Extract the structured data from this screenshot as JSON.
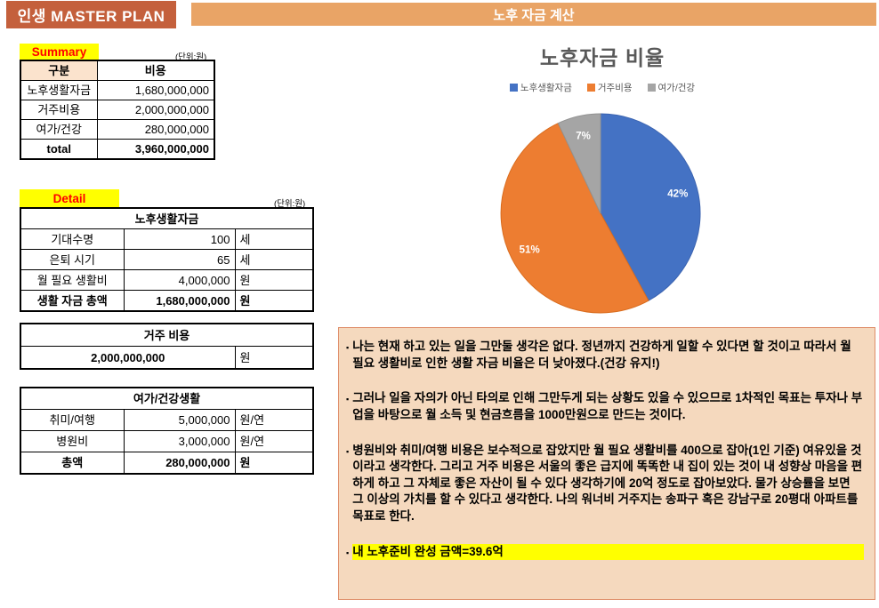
{
  "header": {
    "brand": "인생 MASTER PLAN",
    "title": "노후 자금 계산",
    "brand_bg": "#C4603C",
    "bar_bg": "#E9A466"
  },
  "summary": {
    "label": "Summary",
    "unit_note": "(단위:원)",
    "columns": [
      "구분",
      "비용"
    ],
    "rows": [
      {
        "label": "노후생활자금",
        "value": "1,680,000,000"
      },
      {
        "label": "거주비용",
        "value": "2,000,000,000"
      },
      {
        "label": "여가/건강",
        "value": "280,000,000"
      }
    ],
    "total": {
      "label": "total",
      "value": "3,960,000,000"
    },
    "header_fill": "#FBE3CD"
  },
  "detail": {
    "label": "Detail",
    "unit_note": "(단위:원)",
    "title": "노후생활자금",
    "rows": [
      {
        "label": "기대수명",
        "value": "100",
        "unit": "세"
      },
      {
        "label": "은퇴 시기",
        "value": "65",
        "unit": "세"
      },
      {
        "label": "월 필요 생활비",
        "value": "4,000,000",
        "unit": "원"
      }
    ],
    "total": {
      "label": "생활 자금 총액",
      "value": "1,680,000,000",
      "unit": "원"
    }
  },
  "housing": {
    "title": "거주 비용",
    "value": "2,000,000,000",
    "unit": "원"
  },
  "leisure": {
    "title": "여가/건강생활",
    "rows": [
      {
        "label": "취미/여행",
        "value": "5,000,000",
        "unit": "원/연"
      },
      {
        "label": "병원비",
        "value": "3,000,000",
        "unit": "원/연"
      }
    ],
    "total": {
      "label": "총액",
      "value": "280,000,000",
      "unit": "원"
    }
  },
  "chart_data": {
    "type": "pie",
    "title": "노후자금 비율",
    "categories": [
      "노후생활자금",
      "거주비용",
      "여가/건강"
    ],
    "values": [
      42,
      51,
      7
    ],
    "labels": [
      "42%",
      "51%",
      "7%"
    ],
    "colors": [
      "#4472C4",
      "#ED7D31",
      "#A5A5A5"
    ],
    "border_colors": [
      "#3B63B0",
      "#D96C1E",
      "#929292"
    ],
    "label_color": "#FFFFFF",
    "title_color": "#595959",
    "legend_position": "top",
    "start_angle_deg": 0,
    "direction": "clockwise"
  },
  "notes": {
    "bullet_char": "▪",
    "bullets": [
      "나는 현재 하고 있는 일을 그만둘 생각은 없다. 정년까지 건강하게 일할 수 있다면 할 것이고 따라서 월 필요 생활비로 인한 생활 자금 비율은 더 낮아졌다.(건강 유지!)",
      "그러나 일을 자의가 아닌 타의로 인해 그만두게 되는 상황도 있을 수 있으므로 1차적인 목표는 투자나 부업을 바탕으로 월 소득 및 현금흐름을 1000만원으로 만드는 것이다.",
      "병원비와 취미/여행 비용은 보수적으로 잡았지만 월 필요 생활비를 400으로 잡아(1인 기준) 여유있을 것이라고 생각한다. 그리고 거주 비용은 서울의 좋은 급지에 똑똑한 내 집이 있는 것이 내 성향상 마음을 편하게 하고 그 자체로 좋은 자산이 될 수 있다 생각하기에 20억 정도로 잡아보았다. 물가 상승률을 보면 그 이상의 가치를 할 수 있다고 생각한다. 나의 워너비 거주지는 송파구 혹은 강남구로 20평대 아파트를 목표로 한다.",
      "내 노후준비 완성 금액=39.6억"
    ],
    "highlight_last": true,
    "highlight_color": "#FFFF00",
    "panel_bg": "#F5D9BE",
    "panel_border": "#DF8E6A"
  }
}
